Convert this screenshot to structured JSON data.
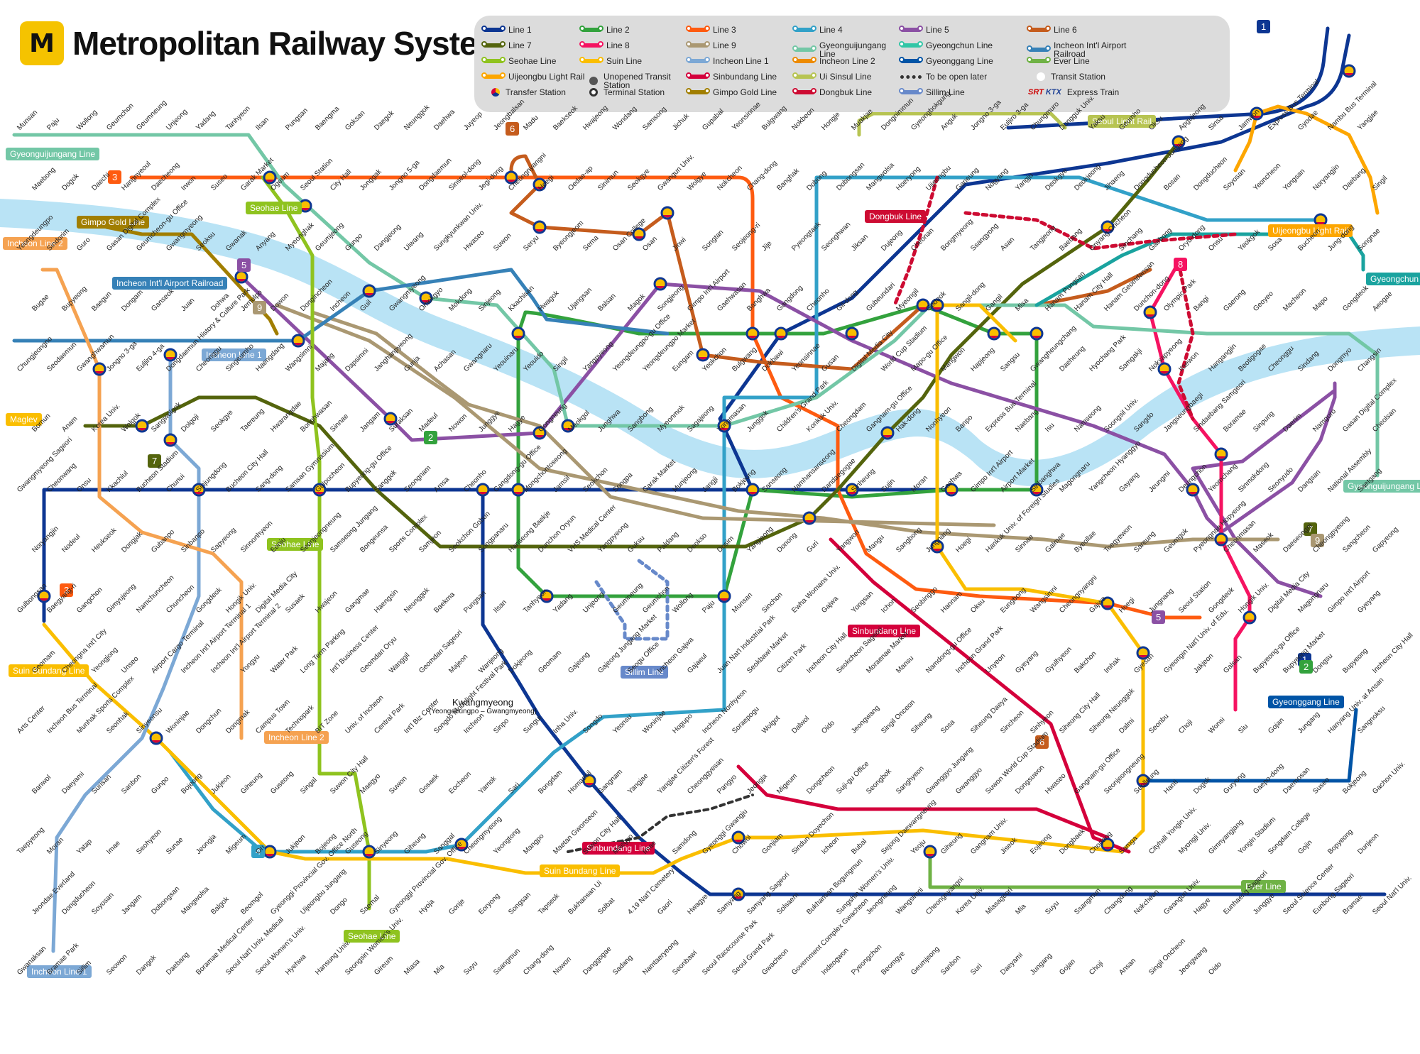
{
  "title": "Metropolitan Railway System",
  "logo_glyph": "M",
  "legend": [
    {
      "label": "Line 1",
      "color": "#0d3692",
      "kind": "line"
    },
    {
      "label": "Line 2",
      "color": "#33a23d",
      "kind": "line"
    },
    {
      "label": "Line 3",
      "color": "#fe5b10",
      "kind": "line"
    },
    {
      "label": "Line 4",
      "color": "#32a1c8",
      "kind": "line"
    },
    {
      "label": "Line 5",
      "color": "#8b50a4",
      "kind": "line"
    },
    {
      "label": "Line 6",
      "color": "#c55c1d",
      "kind": "line"
    },
    {
      "label": "Line 7",
      "color": "#54640d",
      "kind": "line"
    },
    {
      "label": "Line 8",
      "color": "#f51361",
      "kind": "line"
    },
    {
      "label": "Line 9",
      "color": "#aa9872",
      "kind": "line"
    },
    {
      "label": "Gyeonguijungang Line",
      "color": "#73c7a6",
      "kind": "line"
    },
    {
      "label": "Gyeongchun Line",
      "color": "#32c6a6",
      "kind": "line"
    },
    {
      "label": "Incheon Int'l Airport Railroad",
      "color": "#3681b7",
      "kind": "line"
    },
    {
      "label": "Seohae Line",
      "color": "#8fc31f",
      "kind": "line"
    },
    {
      "label": "Suin Line",
      "color": "#fabe00",
      "kind": "line"
    },
    {
      "label": "Incheon Line 1",
      "color": "#7ca8d5",
      "kind": "line"
    },
    {
      "label": "Incheon Line 2",
      "color": "#ed8b00",
      "kind": "line"
    },
    {
      "label": "Gyeonggang Line",
      "color": "#0054a6",
      "kind": "line"
    },
    {
      "label": "Ever Line",
      "color": "#6fb245",
      "kind": "line"
    },
    {
      "label": "Uijeongbu Light Rail",
      "color": "#fda600",
      "kind": "line"
    },
    {
      "label": "Unopened Transit Station",
      "color": "#555555",
      "kind": "icon-unopened"
    },
    {
      "label": "Sinbundang Line",
      "color": "#d4003b",
      "kind": "line"
    },
    {
      "label": "Ui Sinsul Line",
      "color": "#b7c452",
      "kind": "line"
    },
    {
      "label": "To be open later",
      "color": "#333333",
      "kind": "dotted"
    },
    {
      "label": "Transit Station",
      "color": "#ffffff",
      "kind": "icon-transit"
    },
    {
      "label": "Transfer Station",
      "color": "#ffffff",
      "kind": "icon-transfer"
    },
    {
      "label": "Terminal Station",
      "color": "#333333",
      "kind": "icon-terminal"
    },
    {
      "label": "Gimpo Gold Line",
      "color": "#a17e00",
      "kind": "line"
    },
    {
      "label": "Dongbuk Line",
      "color": "#cd0b32",
      "kind": "line"
    },
    {
      "label": "Sillim Line",
      "color": "#6789ca",
      "kind": "line"
    },
    {
      "label": "Express Train",
      "color": "#cc0000",
      "kind": "icon-express"
    }
  ],
  "express_brands": {
    "srt": "SRT",
    "ktx": "KTX"
  },
  "line_badges": [
    {
      "text": "3",
      "color": "#fe5b10"
    },
    {
      "text": "6",
      "color": "#c55c1d"
    },
    {
      "text": "7",
      "color": "#54640d"
    },
    {
      "text": "1",
      "color": "#0d3692"
    },
    {
      "text": "5",
      "color": "#8b50a4"
    },
    {
      "text": "9",
      "color": "#aa9872"
    },
    {
      "text": "2",
      "color": "#33a23d"
    },
    {
      "text": "8",
      "color": "#f51361"
    },
    {
      "text": "4",
      "color": "#32a1c8"
    }
  ],
  "line_labels": [
    "Gyeonguijungang Line",
    "Gimpo Gold Line",
    "Incheon Line 2",
    "Seohae Line",
    "Incheon Int'l Airport Railroad",
    "Incheon Line 1",
    "Maglev",
    "Suin Bundang Line",
    "Dongbuk Line",
    "Seoul Light Rail",
    "Uijeongbu Light Rail",
    "Gyeongchun Line",
    "Sinbundang Line",
    "Sillim Line",
    "Gyeonggang Line",
    "Ever Line",
    "Suin Bundang Line",
    "Sinbundang Line",
    "Seohae Line",
    "Incheon Line 1",
    "Incheon Line 2",
    "Seohae Line",
    "Gyeonguijungang Line"
  ],
  "stations": [
    "Munsan",
    "Paju",
    "Wollong",
    "Geumchon",
    "Geumneung",
    "Unjeong",
    "Yadang",
    "Tanhyeon",
    "Ilsan",
    "Pungsan",
    "Baengma",
    "Goksan",
    "Daegok",
    "Neunggok",
    "Daehwa",
    "Juyeop",
    "Jeongbalsan",
    "Madu",
    "Baekseok",
    "Hwajeong",
    "Wondang",
    "Samsong",
    "Jichuk",
    "Gupabal",
    "Yeonsinnae",
    "Bulgwang",
    "Nokbeon",
    "Hongje",
    "Muakjae",
    "Dongnimmun",
    "Gyeongbokgung",
    "Anguk",
    "Jongno 3-ga",
    "Euljiro 3-ga",
    "Chungmuro",
    "Dongguk Univ.",
    "Yaksu",
    "Geumho",
    "Oksu",
    "Apgujeong",
    "Sinsa",
    "Jamwon",
    "Express Bus Terminal",
    "Gyodae",
    "Nambu Bus Terminal",
    "Yangjae",
    "Maebong",
    "Dogok",
    "Daechi",
    "Hangnyeoul",
    "Daecheong",
    "Irwon",
    "Suseo",
    "Garak Market",
    "Ogeum",
    "Seoul Station",
    "City Hall",
    "Jonggak",
    "Jongno 5-ga",
    "Dongdaemun",
    "Sinseol-dong",
    "Jegi-dong",
    "Cheongnyangni",
    "Hoegi",
    "Oedae-ap",
    "Sinimun",
    "Seokgye",
    "Gwangun Univ.",
    "Wolgye",
    "Nokcheon",
    "Chang-dong",
    "Banghak",
    "Dobong",
    "Dobongsan",
    "Mangwolsa",
    "Hoeryong",
    "Uijeongbu",
    "Ganeung",
    "Nogyang",
    "Yangju",
    "Deokgye",
    "Deokjeong",
    "Jihaeng",
    "Dongducheon Jungang",
    "Bosan",
    "Dongducheon",
    "Soyosan",
    "Yeoncheon",
    "Yongsan",
    "Noryangjin",
    "Daebang",
    "Singil",
    "Yeongdeungpo",
    "Sindorim",
    "Guro",
    "Gasan Digital Complex",
    "Geumcheon-gu Office",
    "Gwangmyeong",
    "Seoksu",
    "Gwanak",
    "Anyang",
    "Myeonghak",
    "Geumjeong",
    "Gunpo",
    "Dangjeong",
    "Uiwang",
    "Sungkyunkwan Univ.",
    "Hwaseo",
    "Suwon",
    "Seryu",
    "Byeongjeom",
    "Sema",
    "Osan College",
    "Osan",
    "Jinwi",
    "Songtan",
    "Seojeong-ri",
    "Jije",
    "Pyeongtaek",
    "Seonghwan",
    "Jiksan",
    "Dujeong",
    "Cheonan",
    "Bongmyeong",
    "Ssangyong",
    "Asan",
    "Tangjeong",
    "Baebang",
    "Onyang Oncheon",
    "Sinchang",
    "Gaebong",
    "Oryu-dong",
    "Onsu",
    "Yeokgok",
    "Sosa",
    "Bucheon",
    "Jung-dong",
    "Songnae",
    "Bugae",
    "Bupyeong",
    "Baegun",
    "Dongam",
    "Ganseok",
    "Juan",
    "Dohwa",
    "Jemulpo",
    "Dowon",
    "Dongincheon",
    "Incheon",
    "Guil",
    "Gwangmyeong",
    "Omokgyo",
    "Mokdong",
    "Sinjeong",
    "Kkachisan",
    "Hwagok",
    "Ujangsan",
    "Balsan",
    "Magok",
    "Songjeong",
    "Gimpo Int'l Airport",
    "Gaehwasan",
    "Banghwa",
    "Gangdong",
    "Cheonho",
    "Gil-dong",
    "Gubeundari",
    "Myeongil",
    "Godeok",
    "Sangil-dong",
    "Gangil",
    "Misa",
    "Hanam Pungsan",
    "Hanam City Hall",
    "Hanam Geomdansan",
    "Dunchon-dong",
    "Olympic Park",
    "Bangi",
    "Gaerong",
    "Geoyeo",
    "Macheon",
    "Mapo",
    "Gongdeok",
    "Aeogae",
    "Chungjeongno",
    "Seodaemun",
    "Gwanghwamun",
    "Jongno 3-ga",
    "Euljiro 4-ga",
    "Dongdaemun History & Culture Park",
    "Cheonggu",
    "Singeumho",
    "Haengdang",
    "Wangsimni",
    "Majang",
    "Dapsimni",
    "Janghanpyeong",
    "Gunja",
    "Achasan",
    "Gwangnaru",
    "Yeouinaru",
    "Yeouido",
    "Singil",
    "Yangpyeong",
    "Yeongdeungpo-gu Office",
    "Yeongdeungpo Market",
    "Eungam",
    "Yeokchon",
    "Bulgwang",
    "Dokbawi",
    "Yeonsinnae",
    "Gusan",
    "Digital Media City",
    "World Cup Stadium",
    "Mapo-gu Office",
    "Mangwon",
    "Hapjeong",
    "Sangsu",
    "Gwangheungchang",
    "Daeheung",
    "Hyochang Park",
    "Samgakji",
    "Noksapyeong",
    "Itaewon",
    "Hangangjin",
    "Beotigogae",
    "Cheonggu",
    "Sindang",
    "Dongmyo",
    "Changsin",
    "Bomun",
    "Anam",
    "Korea Univ.",
    "Wolgok",
    "Sangwolgok",
    "Dolgoji",
    "Seokgye",
    "Taereung",
    "Hwarangdae",
    "Bonghwasan",
    "Sinnae",
    "Jangam",
    "Suraksan",
    "Madeul",
    "Nowon",
    "Junggye",
    "Hagye",
    "Gongneung",
    "Meokgol",
    "Junghwa",
    "Sangbong",
    "Myeonmok",
    "Sagajeong",
    "Yongmasan",
    "Junggok",
    "Children's Grand Park",
    "Konkuk Univ.",
    "Cheongdam",
    "Gangnam-gu Office",
    "Hak-dong",
    "Nonhyeon",
    "Banpo",
    "Express Bus Terminal",
    "Naebang",
    "Isu",
    "Namseong",
    "Soongsil Univ.",
    "Sangdo",
    "Jangseungbaegi",
    "Sindaebang Samgeori",
    "Boramae",
    "Sinpung",
    "Daerim",
    "Namguro",
    "Gasan Digital Complex",
    "Cheolsan",
    "Gwangmyeong Sageori",
    "Cheonwang",
    "Onsu",
    "Kkachiul",
    "Bucheon Stadium",
    "Chunui",
    "Sinjungdong",
    "Bucheon City Hall",
    "Sang-dong",
    "Samsan Gymnasium",
    "Gulpocheon",
    "Bupyeong-gu Office",
    "Sanggok",
    "Seongnam",
    "Amsa",
    "Cheonho",
    "Gangdong-gu Office",
    "Mongchontoseong",
    "Jamsil",
    "Seokchon",
    "Songpa",
    "Garak Market",
    "Munjeong",
    "Jangji",
    "Bokjeong",
    "Sanseong",
    "Namhansanseong",
    "Dandaegogae",
    "Sinheung",
    "Sujin",
    "Moran",
    "Gaehwa",
    "Gimpo Int'l Airport",
    "Airport Market",
    "Sinbanghwa",
    "Magongnaru",
    "Yangcheon Hyanggyo",
    "Gayang",
    "Jeungmi",
    "Deungchon",
    "Yeomchang",
    "Sinmokdong",
    "Seonyudo",
    "Dangsan",
    "National Assembly",
    "Saetgang",
    "Noryangjin",
    "Nodeul",
    "Heukseok",
    "Dongjak",
    "Gubanpo",
    "Sinbanpo",
    "Sapyeong",
    "Sinnonhyeon",
    "Eonju",
    "Seonjeongneung",
    "Samseong Jungang",
    "Bongeunsa",
    "Sports Complex",
    "Samjeon",
    "Seokchon Gobun",
    "Songpanaru",
    "Hanseong Baekje",
    "Dunchon Oryun",
    "VHS Medical Center",
    "Yangpyeong",
    "Guksu",
    "Paldang",
    "Deokso",
    "Dosim",
    "Yangjeong",
    "Donong",
    "Guri",
    "Yangwon",
    "Mangu",
    "Sangbong",
    "Jungnang",
    "Hoegi",
    "Hankuk Univ. of Foreign Studies",
    "Sinnae",
    "Galmae",
    "Byeollae",
    "Toegyewon",
    "Sareung",
    "Geumgok",
    "Pyeongnae Hopyeong",
    "Cheonmasan",
    "Maseok",
    "Daeseongni",
    "Cheongpyeong",
    "Sangcheon",
    "Gapyeong",
    "Gulbongsan",
    "Baegyang-ri",
    "Gangchon",
    "Gimyujeong",
    "Namchuncheon",
    "Chuncheon",
    "Gongdeok",
    "Hongik Univ.",
    "Digital Media City",
    "Susaek",
    "Hwajeon",
    "Gangmae",
    "Haengsin",
    "Neunggok",
    "Baekma",
    "Pungsan",
    "Ilsan",
    "Tanhyeon",
    "Yadang",
    "Unjeong",
    "Geumneung",
    "Geumchon",
    "Wollong",
    "Paju",
    "Munsan",
    "Sinchon",
    "Ewha Womans Univ.",
    "Gajwa",
    "Yongsan",
    "Ichon",
    "Seobinggo",
    "Hannam",
    "Oksu",
    "Eungbong",
    "Wangsimni",
    "Cheongnyangni",
    "Gajwa",
    "Hoegi",
    "Jungnang",
    "Seoul Station",
    "Gongdeok",
    "Hongik Univ.",
    "Digital Media City",
    "Magongnaru",
    "Gimpo Int'l Airport",
    "Gyeyang",
    "Geomam",
    "Cheongna Int'l City",
    "Yeongjong",
    "Unseo",
    "Airport Cargo Terminal",
    "Incheon Int'l Airport Terminal 1",
    "Incheon Int'l Airport Terminal 2",
    "Yongyu",
    "Water Park",
    "Long Term Parking",
    "Int'l Business Center",
    "Geomdan Oryu",
    "Wanggil",
    "Geomdan Sageori",
    "Majeon",
    "Wanjeong",
    "Dokjeong",
    "Geomam",
    "Gajeong",
    "Gajeong Jungang Market",
    "Seogu Office",
    "Incheon Gajwa",
    "Gajaeul",
    "Juan Nat'l Industrial Park",
    "Seokbawi Market",
    "Citizen Park",
    "Incheon City Hall",
    "Seokcheon Sageori",
    "Moraenae Market",
    "Mansu",
    "Namdong-gu Office",
    "Incheon Grand Park",
    "Unyeon",
    "Gyeyang",
    "Gyulhyeon",
    "Bakchon",
    "Imhak",
    "Gyesan",
    "Gyeongin Nat'l Univ. of Edu.",
    "Jakjeon",
    "Galsan",
    "Bupyeong-gu Office",
    "Bupyeong Market",
    "Dongsu",
    "Bupyeong",
    "Incheon City Hall",
    "Arts Center",
    "Incheon Bus Terminal",
    "Munhak Sports Complex",
    "Seonhak",
    "Sinyeonsu",
    "Woninjae",
    "Dongchun",
    "Dongmak",
    "Campus Town",
    "Technopark",
    "BIT Zone",
    "Univ. of Incheon",
    "Central Park",
    "Int'l Biz Center",
    "Songdo Moonlight Festival Park",
    "Incheon",
    "Sinpo",
    "Sungui",
    "Inha Univ.",
    "Songdo",
    "Yeonsu",
    "Woninjae",
    "Hogupo",
    "Incheon Nonhyeon",
    "Soraepogu",
    "Wolgot",
    "Dalwol",
    "Oido",
    "Jeongwang",
    "Singil Onceon",
    "Siheung",
    "Sosa",
    "Siheung Daeya",
    "Sincheon",
    "Sinhyeon",
    "Siheung City Hall",
    "Siheung Neunggok",
    "Dalmi",
    "Seonbu",
    "Choji",
    "Wonsi",
    "Siu",
    "Gojan",
    "Jungang",
    "Hanyang Univ. at Ansan",
    "Sangnoksu",
    "Banwol",
    "Daeyami",
    "Surisan",
    "Sanbon",
    "Gunpo",
    "Bojeong",
    "Jukjeon",
    "Giheung",
    "Guseong",
    "Singal",
    "Suwon City Hall",
    "Maegyo",
    "Suwon",
    "Gosaek",
    "Eocheon",
    "Yamok",
    "Sari",
    "Bongdam",
    "Homaesil",
    "Gangnam",
    "Yangjae",
    "Yangjae Citizen's Forest",
    "Cheonggyesan",
    "Pangyo",
    "Jeongja",
    "Migeum",
    "Dongcheon",
    "Suji-gu Office",
    "Seongbok",
    "Sanghyeon",
    "Gwanggyo Jungang",
    "Gwanggyo",
    "Suwon World Cup Stadium",
    "Dongsuwon",
    "Hwaseo",
    "Gangnam-gu Office",
    "Seonjeongneung",
    "Seolleung",
    "Hanti",
    "Dogok",
    "Guryong",
    "Gaepo-dong",
    "Daemosan",
    "Suseo",
    "Bokjeong",
    "Gachon Univ.",
    "Taepyeong",
    "Moran",
    "Yatap",
    "Imae",
    "Seohyeon",
    "Sunae",
    "Jeongja",
    "Migeum",
    "Ori",
    "Jukjeon",
    "Bojeong",
    "Guseong",
    "Sinyeong",
    "Giheung",
    "Sanggal",
    "Cheongmyeong",
    "Yeongtong",
    "Mangpo",
    "Maetan Gwonseon",
    "Suwon City Hall",
    "Maegyo",
    "Imae",
    "Samdong",
    "Gyeonggi Gwangju",
    "Chowol",
    "Gonjiam",
    "Sindun Doyechon",
    "Icheon",
    "Bubal",
    "Sejong Daewangneung",
    "Yeoju",
    "Giheung",
    "Gangnam Univ.",
    "Jiseok",
    "Eojeong",
    "Dongbaek",
    "Chodang",
    "Samga",
    "Cityhall Yongin Univ.",
    "Myongji Univ.",
    "Gimnyangjang",
    "Yongin Stadium",
    "Songdam College",
    "Gojin",
    "Bopyeong",
    "Dunjeon",
    "Jeondae Everland",
    "Dongducheon",
    "Soyosan",
    "Jangam",
    "Dobongsan",
    "Mangwolsa",
    "Balgok",
    "Beomgol",
    "Gyeonggi Provincial Gov. Office North",
    "Uijeongbu Jungang",
    "Dongo",
    "Saemal",
    "Gyeonggi Provincial Gov. Office",
    "Hyoja",
    "Gonje",
    "Eoryong",
    "Songsan",
    "Tapseok",
    "Bukhansan Ui",
    "Solbat",
    "4.19 Nat'l Cemetery",
    "Gaori",
    "Hwagye",
    "Samyang",
    "Samyang Sageori",
    "Solsaem",
    "Bukhansan Bogungmun",
    "Sungshin Women's Univ.",
    "Jeongneung",
    "Wangsimni",
    "Cheongnyangni",
    "Korea Univ.",
    "Miasageori",
    "Mia",
    "Suyu",
    "Ssangmun",
    "Changdong",
    "Nokcheon",
    "Gwangun Univ.",
    "Hagye",
    "Eunhaeng Sageori",
    "Junggye",
    "Seoul Science Center",
    "Eunbong Sageori",
    "Bramae",
    "Seoul Nat'l Univ.",
    "Gwanaksan",
    "Bramae Park",
    "Sillim",
    "Seowon",
    "Dangok",
    "Daebang",
    "Boramae Medical Center",
    "Seoul Nat'l Univ. Medical",
    "Seoul Women's Univ.",
    "Hyehwa",
    "Hansung Univ.",
    "Seongsin Women's Univ.",
    "Gireum",
    "Miasa",
    "Mia",
    "Suyu",
    "Ssangmun",
    "Chang-dong",
    "Nowon",
    "Danggogae",
    "Sadang",
    "Namtaeryeong",
    "Seonbawi",
    "Seoul Racecourse Park",
    "Seoul Grand Park",
    "Gwacheon",
    "Government Complex Gwacheon",
    "Indeogwon",
    "Pyeongchon",
    "Beomgye",
    "Geumjeong",
    "Sanbon",
    "Suri",
    "Daeyami",
    "Jungang",
    "Gojan",
    "Choji",
    "Ansan",
    "Singil Oncheon",
    "Jeongwang",
    "Oido"
  ],
  "kwangmyeong_caption": "Kwangmyeong",
  "kwangmyeong_sub": "(Yeongdeungpo – Gwangmyeong)"
}
